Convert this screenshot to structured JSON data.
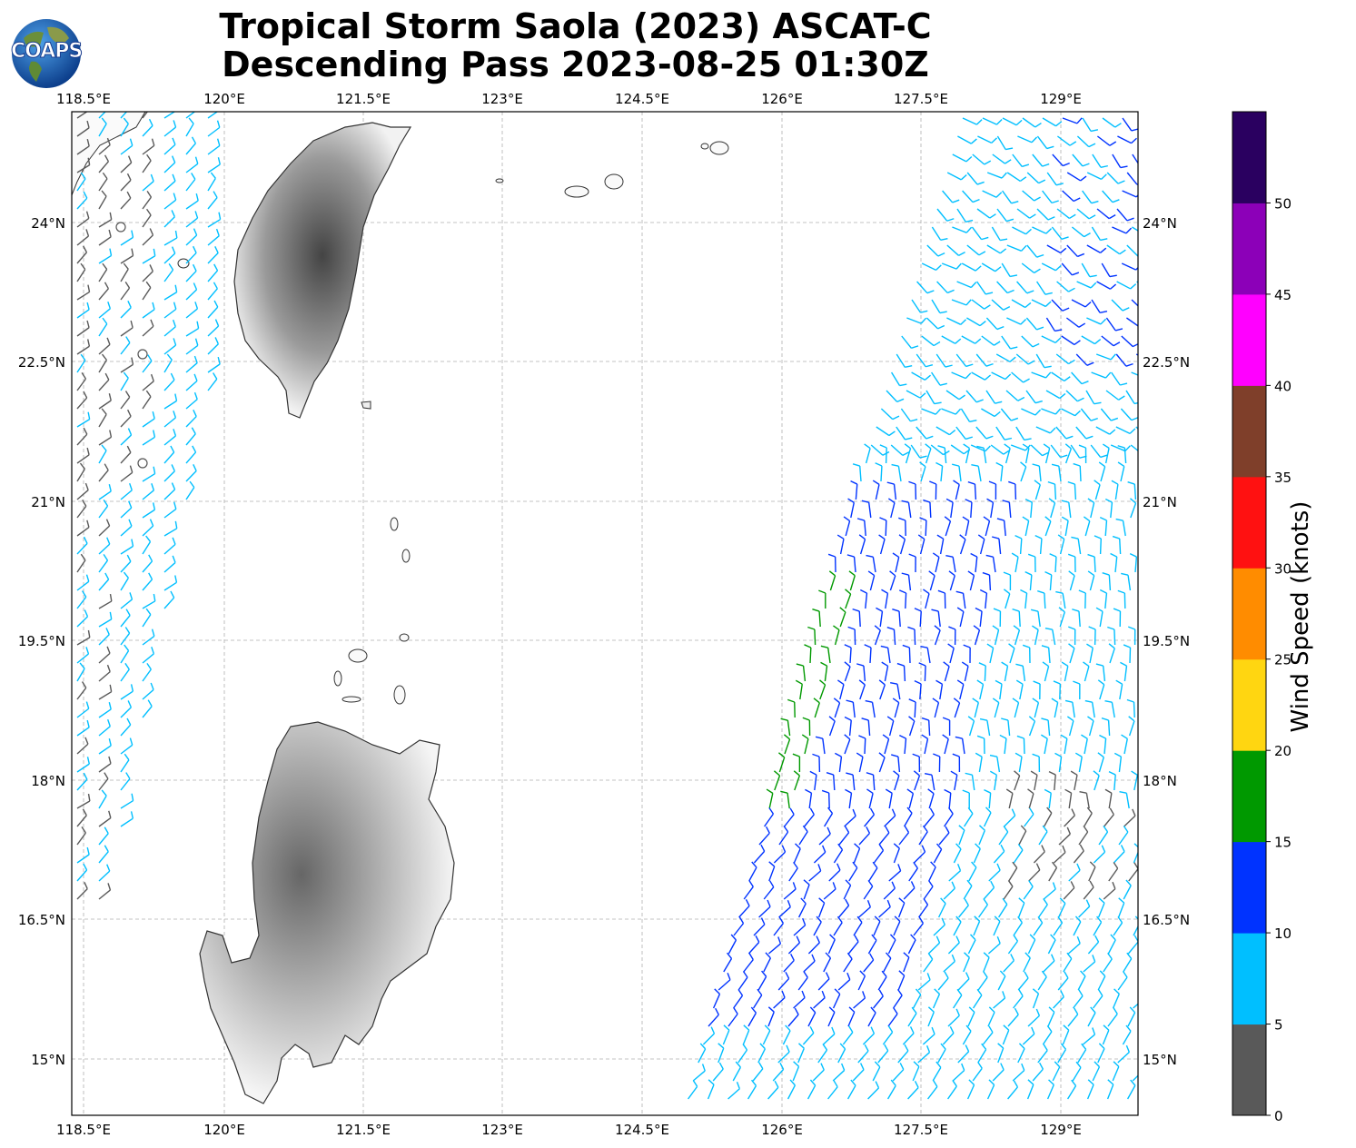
{
  "title": {
    "line1": "Tropical Storm Saola (2023) ASCAT-C",
    "line2": "Descending Pass 2023-08-25 01:30Z"
  },
  "logo": {
    "text": "COAPS",
    "icon": "globe-logo-icon"
  },
  "map": {
    "lon_ticks": [
      "118.5°E",
      "120°E",
      "121.5°E",
      "123°E",
      "124.5°E",
      "126°E",
      "127.5°E",
      "129°E"
    ],
    "lat_ticks": [
      "24°N",
      "22.5°N",
      "21°N",
      "19.5°N",
      "18°N",
      "16.5°N",
      "15°N"
    ],
    "grid": true,
    "land": [
      "Taiwan",
      "Luzon",
      "Babuyan Islands",
      "Batanes Islands",
      "Ryukyu Islands"
    ]
  },
  "colorbar": {
    "label": "Wind Speed (knots)",
    "ticks": [
      "0",
      "5",
      "10",
      "15",
      "20",
      "25",
      "30",
      "35",
      "40",
      "45",
      "50"
    ],
    "colors": [
      "#595959",
      "#00bfff",
      "#0033ff",
      "#009900",
      "#ffd611",
      "#ff8c00",
      "#ff1111",
      "#7f3f2a",
      "#ff00ff",
      "#8c00b8",
      "#2a0060"
    ]
  }
}
